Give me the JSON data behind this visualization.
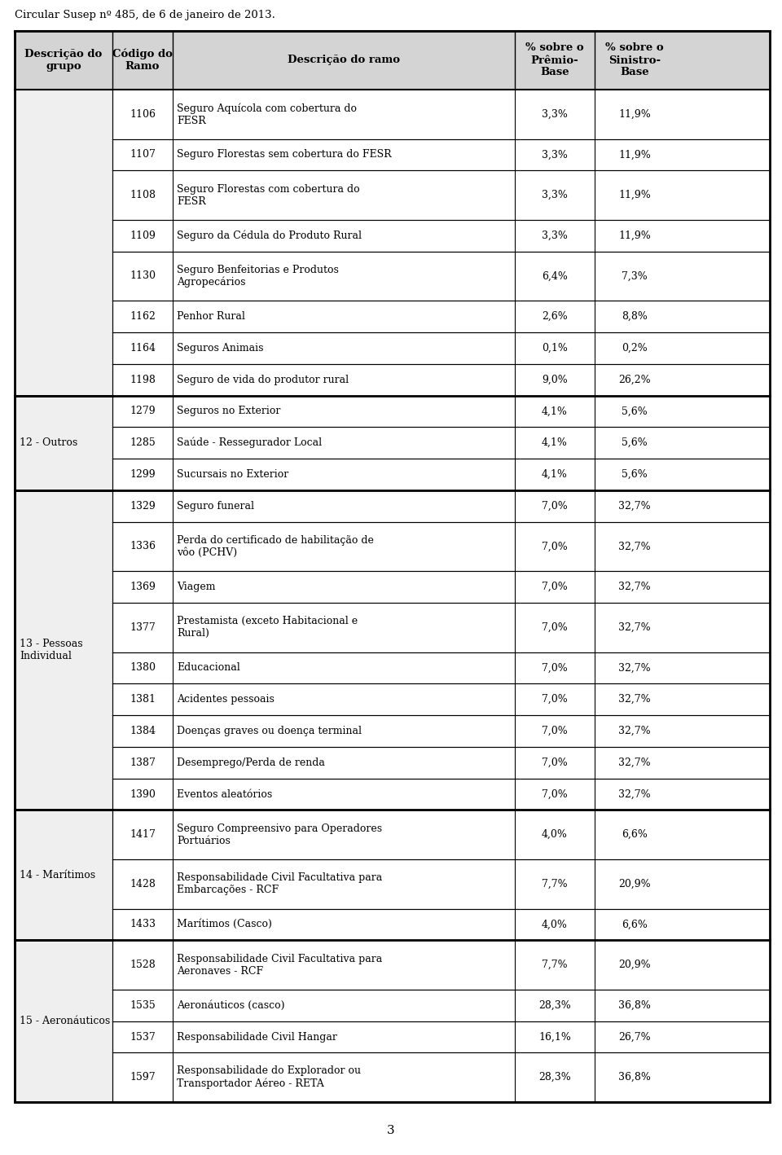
{
  "title": "Circular Susep nº 485, de 6 de janeiro de 2013.",
  "header": [
    "Descrição do\ngrupo",
    "Código do\nRamo",
    "Descrição do ramo",
    "% sobre o\nPrêmio-\nBase",
    "% sobre o\nSinistro-\nBase"
  ],
  "page_number": "3",
  "rows": [
    {
      "grupo": "",
      "codigo": "1106",
      "descricao": "Seguro Aquícola com cobertura do\nFESR",
      "premio": "3,3%",
      "sinistro": "11,9%"
    },
    {
      "grupo": "",
      "codigo": "1107",
      "descricao": "Seguro Florestas sem cobertura do FESR",
      "premio": "3,3%",
      "sinistro": "11,9%"
    },
    {
      "grupo": "",
      "codigo": "1108",
      "descricao": "Seguro Florestas com cobertura do\nFESR",
      "premio": "3,3%",
      "sinistro": "11,9%"
    },
    {
      "grupo": "",
      "codigo": "1109",
      "descricao": "Seguro da Cédula do Produto Rural",
      "premio": "3,3%",
      "sinistro": "11,9%"
    },
    {
      "grupo": "",
      "codigo": "1130",
      "descricao": "Seguro Benfeitorias e Produtos\nAgropecários",
      "premio": "6,4%",
      "sinistro": "7,3%"
    },
    {
      "grupo": "",
      "codigo": "1162",
      "descricao": "Penhor Rural",
      "premio": "2,6%",
      "sinistro": "8,8%"
    },
    {
      "grupo": "",
      "codigo": "1164",
      "descricao": "Seguros Animais",
      "premio": "0,1%",
      "sinistro": "0,2%"
    },
    {
      "grupo": "",
      "codigo": "1198",
      "descricao": "Seguro de vida do produtor rural",
      "premio": "9,0%",
      "sinistro": "26,2%"
    },
    {
      "grupo": "12 - Outros",
      "codigo": "1279",
      "descricao": "Seguros no Exterior",
      "premio": "4,1%",
      "sinistro": "5,6%"
    },
    {
      "grupo": "12 - Outros",
      "codigo": "1285",
      "descricao": "Saúde - Ressegurador Local",
      "premio": "4,1%",
      "sinistro": "5,6%"
    },
    {
      "grupo": "12 - Outros",
      "codigo": "1299",
      "descricao": "Sucursais no Exterior",
      "premio": "4,1%",
      "sinistro": "5,6%"
    },
    {
      "grupo": "13 - Pessoas\nIndividual",
      "codigo": "1329",
      "descricao": "Seguro funeral",
      "premio": "7,0%",
      "sinistro": "32,7%"
    },
    {
      "grupo": "13 - Pessoas\nIndividual",
      "codigo": "1336",
      "descricao": "Perda do certificado de habilitação de\nvôo (PCHV)",
      "premio": "7,0%",
      "sinistro": "32,7%"
    },
    {
      "grupo": "13 - Pessoas\nIndividual",
      "codigo": "1369",
      "descricao": "Viagem",
      "premio": "7,0%",
      "sinistro": "32,7%"
    },
    {
      "grupo": "13 - Pessoas\nIndividual",
      "codigo": "1377",
      "descricao": "Prestamista (exceto Habitacional e\nRural)",
      "premio": "7,0%",
      "sinistro": "32,7%"
    },
    {
      "grupo": "13 - Pessoas\nIndividual",
      "codigo": "1380",
      "descricao": "Educacional",
      "premio": "7,0%",
      "sinistro": "32,7%"
    },
    {
      "grupo": "13 - Pessoas\nIndividual",
      "codigo": "1381",
      "descricao": "Acidentes pessoais",
      "premio": "7,0%",
      "sinistro": "32,7%"
    },
    {
      "grupo": "13 - Pessoas\nIndividual",
      "codigo": "1384",
      "descricao": "Doenças graves ou doença terminal",
      "premio": "7,0%",
      "sinistro": "32,7%"
    },
    {
      "grupo": "13 - Pessoas\nIndividual",
      "codigo": "1387",
      "descricao": "Desemprego/Perda de renda",
      "premio": "7,0%",
      "sinistro": "32,7%"
    },
    {
      "grupo": "13 - Pessoas\nIndividual",
      "codigo": "1390",
      "descricao": "Eventos aleatórios",
      "premio": "7,0%",
      "sinistro": "32,7%"
    },
    {
      "grupo": "14 - Marítimos",
      "codigo": "1417",
      "descricao": "Seguro Compreensivo para Operadores\nPortuários",
      "premio": "4,0%",
      "sinistro": "6,6%"
    },
    {
      "grupo": "14 - Marítimos",
      "codigo": "1428",
      "descricao": "Responsabilidade Civil Facultativa para\nEmbarcações - RCF",
      "premio": "7,7%",
      "sinistro": "20,9%"
    },
    {
      "grupo": "14 - Marítimos",
      "codigo": "1433",
      "descricao": "Marítimos (Casco)",
      "premio": "4,0%",
      "sinistro": "6,6%"
    },
    {
      "grupo": "15 - Aeronáuticos",
      "codigo": "1528",
      "descricao": "Responsabilidade Civil Facultativa para\nAeronaves - RCF",
      "premio": "7,7%",
      "sinistro": "20,9%"
    },
    {
      "grupo": "15 - Aeronáuticos",
      "codigo": "1535",
      "descricao": "Aeronáuticos (casco)",
      "premio": "28,3%",
      "sinistro": "36,8%"
    },
    {
      "grupo": "15 - Aeronáuticos",
      "codigo": "1537",
      "descricao": "Responsabilidade Civil Hangar",
      "premio": "16,1%",
      "sinistro": "26,7%"
    },
    {
      "grupo": "15 - Aeronáuticos",
      "codigo": "1597",
      "descricao": "Responsabilidade do Explorador ou\nTransportador Aéreo - RETA",
      "premio": "28,3%",
      "sinistro": "36,8%"
    }
  ],
  "background_color": "#ffffff",
  "header_bg": "#d4d4d4",
  "cell_bg": "#ffffff",
  "group_cell_bg": "#efefef",
  "border_color": "#000000",
  "text_color": "#000000",
  "font_size": 9.0,
  "header_font_size": 9.5,
  "title_font_size": 9.5
}
